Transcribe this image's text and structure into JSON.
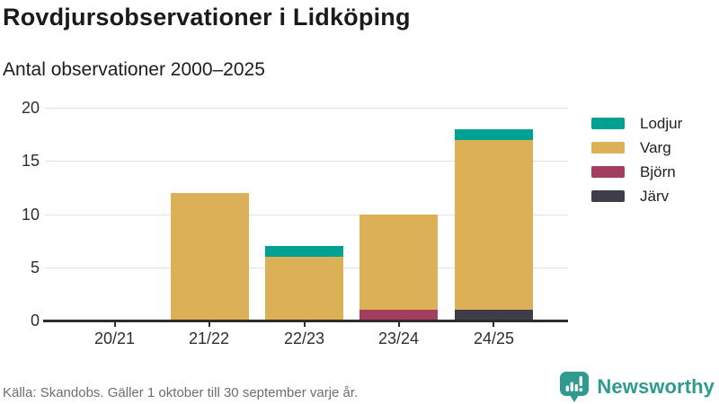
{
  "header": {
    "title": "Rovdjursobservationer i Lidköping",
    "subtitle": "Antal observationer 2000–2025"
  },
  "chart_data": {
    "type": "bar",
    "stacked": true,
    "title": "Rovdjursobservationer i Lidköping",
    "subtitle": "Antal observationer 2000–2025",
    "categories": [
      "20/21",
      "21/22",
      "22/23",
      "23/24",
      "24/25"
    ],
    "series": [
      {
        "name": "Lodjur",
        "color": "#00a192",
        "values": [
          0,
          0,
          1,
          0,
          1
        ]
      },
      {
        "name": "Varg",
        "color": "#dcb056",
        "values": [
          0,
          12,
          6,
          9,
          16
        ]
      },
      {
        "name": "Björn",
        "color": "#a23f5e",
        "values": [
          0,
          0,
          0,
          1,
          0
        ]
      },
      {
        "name": "Järv",
        "color": "#3e3e4b",
        "values": [
          0,
          0,
          0,
          0,
          1
        ]
      }
    ],
    "stack_order_bottom_to_top": [
      "Järv",
      "Björn",
      "Varg",
      "Lodjur"
    ],
    "totals": [
      0,
      12,
      7,
      10,
      18
    ],
    "xlabel": "",
    "ylabel": "",
    "ylim": [
      0,
      20
    ],
    "y_ticks": [
      0,
      5,
      10,
      15,
      20
    ],
    "grid": "horizontal",
    "legend_position": "right"
  },
  "footer": {
    "source": "Källa: Skandobs. Gäller 1 oktober till 30 september varje år.",
    "brand_name": "Newsworthy"
  },
  "colors": {
    "lodjur": "#00a192",
    "varg": "#dcb056",
    "bjorn": "#a23f5e",
    "jarv": "#3e3e4b",
    "brand_teal": "#2f9a8f",
    "grid": "#e2e2e2",
    "axis": "#2d2d2d",
    "text_dark": "#1a1a1a",
    "text_muted": "#6e6e6e"
  }
}
